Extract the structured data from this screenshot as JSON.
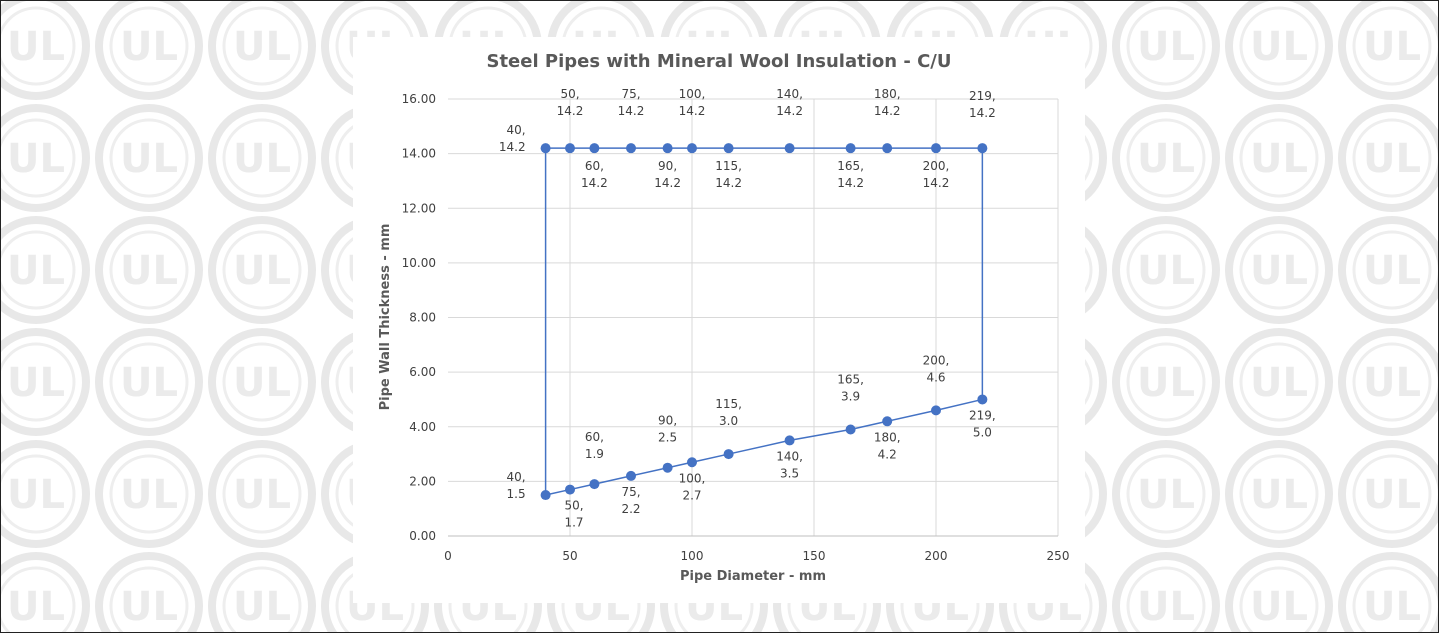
{
  "chart_data": {
    "type": "line",
    "title": "Steel Pipes with Mineral Wool Insulation - C/U",
    "x_label": "Pipe Diameter - mm",
    "y_label": "Pipe Wall Thickness - mm",
    "closed": true,
    "series": [
      {
        "color": "#4472c4",
        "x": [
          40,
          50,
          60,
          75,
          90,
          100,
          115,
          140,
          165,
          180,
          200,
          219,
          219,
          200,
          180,
          165,
          140,
          115,
          100,
          90,
          75,
          60,
          50,
          40
        ],
        "values": [
          1.5,
          1.7,
          1.9,
          2.2,
          2.5,
          2.7,
          3.0,
          3.5,
          3.9,
          4.2,
          4.6,
          5.0,
          14.2,
          14.2,
          14.2,
          14.2,
          14.2,
          14.2,
          14.2,
          14.2,
          14.2,
          14.2,
          14.2,
          14.2
        ],
        "value_labels": [
          [
            "40,",
            "1.5"
          ],
          [
            "50,",
            "1.7"
          ],
          [
            "60,",
            "1.9"
          ],
          [
            "75,",
            "2.2"
          ],
          [
            "90,",
            "2.5"
          ],
          [
            "100,",
            "2.7"
          ],
          [
            "115,",
            "3.0"
          ],
          [
            "140,",
            "3.5"
          ],
          [
            "165,",
            "3.9"
          ],
          [
            "180,",
            "4.2"
          ],
          [
            "200,",
            "4.6"
          ],
          [
            "219,",
            "5.0"
          ],
          [
            "219,",
            "14.2"
          ],
          [
            "200,",
            "14.2"
          ],
          [
            "180,",
            "14.2"
          ],
          [
            "165,",
            "14.2"
          ],
          [
            "140,",
            "14.2"
          ],
          [
            "115,",
            "14.2"
          ],
          [
            "100,",
            "14.2"
          ],
          [
            "90,",
            "14.2"
          ],
          [
            "75,",
            "14.2"
          ],
          [
            "60,",
            "14.2"
          ],
          [
            "50,",
            "14.2"
          ],
          [
            "40,",
            "14.2"
          ]
        ]
      }
    ],
    "xlim": [
      0,
      250
    ],
    "xticks": [
      0,
      50,
      100,
      150,
      200,
      250
    ],
    "ylim": [
      0,
      16
    ],
    "yticks": [
      {
        "value": 0,
        "label": "0.00"
      },
      {
        "value": 2,
        "label": "2.00"
      },
      {
        "value": 4,
        "label": "4.00"
      },
      {
        "value": 6,
        "label": "6.00"
      },
      {
        "value": 8,
        "label": "8.00"
      },
      {
        "value": 10,
        "label": "10.00"
      },
      {
        "value": 12,
        "label": "12.00"
      },
      {
        "value": 14,
        "label": "14.00"
      },
      {
        "value": 16,
        "label": "16.00"
      }
    ],
    "grid": true
  }
}
